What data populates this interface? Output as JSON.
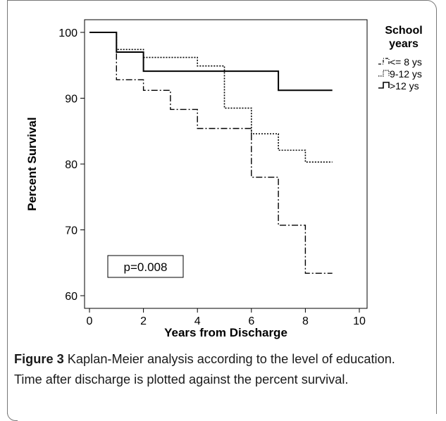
{
  "chart_data": {
    "type": "line",
    "step": true,
    "xlabel": "Years from Discharge",
    "ylabel": "Percent  Survival",
    "xlim": [
      0,
      10
    ],
    "ylim": [
      58,
      102
    ],
    "x_ticks": [
      "0",
      "2",
      "4",
      "6",
      "8",
      "10"
    ],
    "y_ticks": [
      "60",
      "70",
      "80",
      "90",
      "100"
    ],
    "legend_title": "School\nyears",
    "legend_position": "top-right",
    "annotation": "p=0.008",
    "series": [
      {
        "name": "<= 8 ys",
        "style": "dashdot",
        "color": "#000000",
        "x": [
          0,
          1,
          2,
          3,
          4,
          5,
          6,
          7,
          8,
          9
        ],
        "y": [
          100,
          92.8,
          91.2,
          88.3,
          85.4,
          85.4,
          78.0,
          70.7,
          63.4,
          63.4
        ]
      },
      {
        "name": "9-12 ys",
        "style": "dotted",
        "color": "#000000",
        "x": [
          0,
          1,
          2,
          4,
          5,
          6,
          7,
          8,
          9
        ],
        "y": [
          100,
          97.4,
          96.2,
          94.9,
          88.5,
          84.6,
          82.1,
          80.3,
          80.3
        ]
      },
      {
        "name": ">12 ys",
        "style": "solid",
        "color": "#000000",
        "x": [
          0,
          1,
          2,
          7,
          9
        ],
        "y": [
          100,
          97.0,
          94.1,
          91.2,
          91.2
        ]
      }
    ]
  },
  "caption": {
    "label": "Figure 3",
    "text": " Kaplan-Meier analysis according to the level of education. Time after discharge is plotted against the percent survival."
  }
}
